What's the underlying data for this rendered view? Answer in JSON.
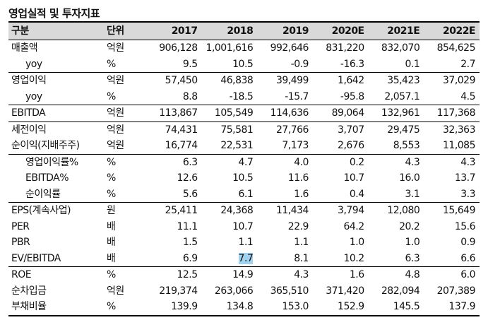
{
  "title": "영업실적 및 투자지표",
  "header": {
    "item": "구분",
    "unit": "단위",
    "years": [
      "2017",
      "2018",
      "2019",
      "2020E",
      "2021E",
      "2022E"
    ]
  },
  "rows": [
    {
      "label": "매출액",
      "unit": "억원",
      "values": [
        "906,128",
        "1,001,616",
        "992,646",
        "831,220",
        "832,070",
        "854,625"
      ],
      "indent": false,
      "sep": false
    },
    {
      "label": "yoy",
      "unit": "%",
      "values": [
        "9.5",
        "10.5",
        "-0.9",
        "-16.3",
        "0.1",
        "2.7"
      ],
      "indent": true,
      "sep": false
    },
    {
      "label": "영업이익",
      "unit": "억원",
      "values": [
        "57,450",
        "46,838",
        "39,499",
        "1,642",
        "35,423",
        "37,029"
      ],
      "indent": false,
      "sep": true
    },
    {
      "label": "yoy",
      "unit": "%",
      "values": [
        "8.8",
        "-18.5",
        "-15.7",
        "-95.8",
        "2,057.1",
        "4.5"
      ],
      "indent": true,
      "sep": false
    },
    {
      "label": "EBITDA",
      "unit": "억원",
      "values": [
        "113,867",
        "105,549",
        "114,636",
        "89,064",
        "132,961",
        "117,368"
      ],
      "indent": false,
      "sep": true
    },
    {
      "label": "세전이익",
      "unit": "억원",
      "values": [
        "74,431",
        "75,581",
        "27,766",
        "3,707",
        "29,475",
        "32,363"
      ],
      "indent": false,
      "sep": true
    },
    {
      "label": "순이익(지배주주)",
      "unit": "억원",
      "values": [
        "16,774",
        "22,531",
        "7,173",
        "2,676",
        "8,553",
        "11,085"
      ],
      "indent": false,
      "sep": false
    },
    {
      "label": "영업이익률%",
      "unit": "%",
      "values": [
        "6.3",
        "4.7",
        "4.0",
        "0.2",
        "4.3",
        "4.3"
      ],
      "indent": true,
      "sep": true
    },
    {
      "label": "EBITDA%",
      "unit": "%",
      "values": [
        "12.6",
        "10.5",
        "11.6",
        "10.7",
        "16.0",
        "13.7"
      ],
      "indent": true,
      "sep": false
    },
    {
      "label": "순이익률",
      "unit": "%",
      "values": [
        "5.6",
        "6.1",
        "1.6",
        "0.4",
        "3.1",
        "3.3"
      ],
      "indent": true,
      "sep": false
    },
    {
      "label": "EPS(계속사업)",
      "unit": "원",
      "values": [
        "25,411",
        "24,368",
        "11,434",
        "3,794",
        "12,080",
        "15,649"
      ],
      "indent": false,
      "sep": true
    },
    {
      "label": "PER",
      "unit": "배",
      "values": [
        "11.1",
        "10.7",
        "22.9",
        "64.2",
        "20.2",
        "15.6"
      ],
      "indent": false,
      "sep": false
    },
    {
      "label": "PBR",
      "unit": "배",
      "values": [
        "1.5",
        "1.1",
        "1.1",
        "1.0",
        "1.0",
        "0.9"
      ],
      "indent": false,
      "sep": false
    },
    {
      "label": "EV/EBITDA",
      "unit": "배",
      "values": [
        "6.9",
        "7.7",
        "8.1",
        "10.2",
        "6.3",
        "6.6"
      ],
      "indent": false,
      "sep": false
    },
    {
      "label": "ROE",
      "unit": "%",
      "values": [
        "12.5",
        "14.9",
        "4.3",
        "1.6",
        "4.8",
        "6.0"
      ],
      "indent": false,
      "sep": true
    },
    {
      "label": "순차입금",
      "unit": "억원",
      "values": [
        "219,374",
        "263,066",
        "365,510",
        "371,420",
        "282,094",
        "207,389"
      ],
      "indent": false,
      "sep": false
    },
    {
      "label": "부채비율",
      "unit": "%",
      "values": [
        "139.9",
        "134.8",
        "153.0",
        "152.9",
        "145.5",
        "137.9"
      ],
      "indent": false,
      "sep": false
    }
  ]
}
